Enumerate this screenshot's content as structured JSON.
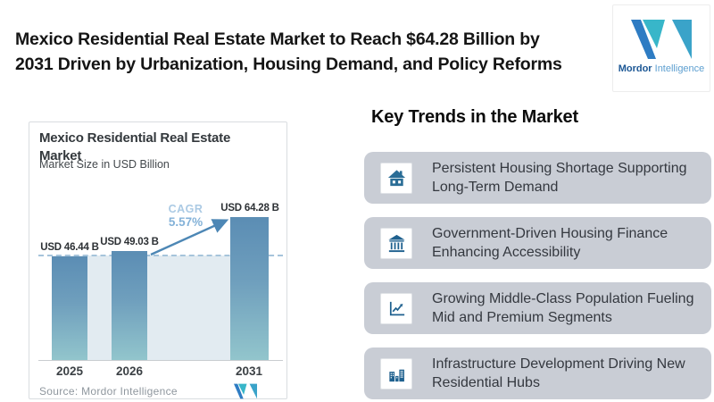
{
  "header": {
    "title_line1": "Mexico Residential Real Estate Market to Reach $64.28 Billion by",
    "title_line2": "2031 Driven by Urbanization, Housing Demand, and Policy Reforms"
  },
  "brand": {
    "name_bold": "Mordor",
    "name_light": " Intelligence"
  },
  "chart_card": {
    "title_line1": "Mexico Residential Real Estate",
    "title_line2": "Market",
    "subtitle": "Market Size in USD Billion",
    "cagr_label": "CAGR",
    "cagr_value": "5.57%",
    "source": "Source: Mordor Intelligence"
  },
  "chart_data": {
    "type": "bar",
    "title": "Mexico Residential Real Estate Market",
    "subtitle": "Market Size in USD Billion",
    "categories": [
      "2025",
      "2026",
      "2031"
    ],
    "values": [
      46.44,
      49.03,
      64.28
    ],
    "value_labels": [
      "USD 46.44 B",
      "USD 49.03 B",
      "USD 64.28 B"
    ],
    "cagr_percent": 5.57,
    "ylim": [
      0,
      70
    ],
    "grid": false,
    "annotations": [
      "CAGR 5.57%",
      "dashed reference line at 2025 level"
    ],
    "bar_color_top": "#5b8db4",
    "bar_color_bottom": "#92c5cc",
    "band_color": "#e2ebf1"
  },
  "trends": {
    "heading": "Key Trends in the Market",
    "items": [
      {
        "icon": "house-icon",
        "text": "Persistent Housing Shortage Supporting Long-Term Demand"
      },
      {
        "icon": "bank-icon",
        "text": "Government-Driven Housing Finance Enhancing Accessibility"
      },
      {
        "icon": "line-chart-icon",
        "text": "Growing Middle-Class Population Fueling Mid and Premium Segments"
      },
      {
        "icon": "buildings-icon",
        "text": "Infrastructure Development Driving New Residential Hubs"
      }
    ]
  },
  "colors": {
    "brand_blue": "#2e7cc3",
    "brand_teal": "#38b6c9",
    "icon_blue": "#24688f",
    "cagr_blue": "#84b2d8",
    "trend_card_bg": "#c9cdd5",
    "arrow_blue": "#4d87b5"
  }
}
